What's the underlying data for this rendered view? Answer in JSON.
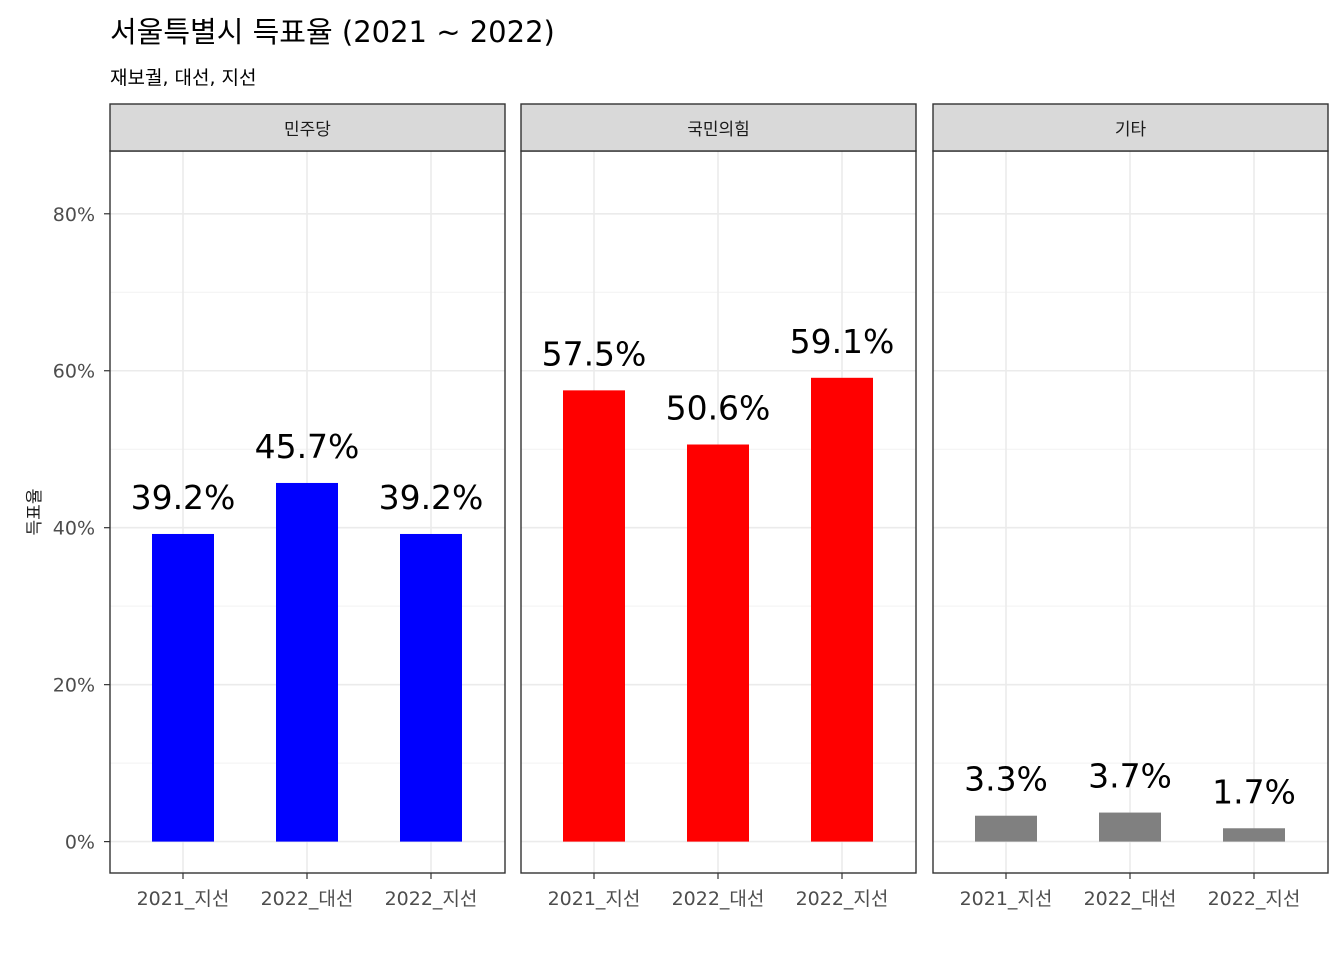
{
  "chart_data": {
    "type": "bar",
    "title": "서울특별시 득표율 (2021 ~ 2022)",
    "subtitle": "재보궐, 대선, 지선",
    "xlabel": "",
    "ylabel": "득표율",
    "ylim": [
      -4,
      88
    ],
    "y_ticks": [
      0,
      20,
      40,
      60,
      80
    ],
    "y_tick_labels": [
      "0%",
      "20%",
      "40%",
      "60%",
      "80%"
    ],
    "grid": true,
    "categories": [
      "2021_지선",
      "2022_대선",
      "2022_지선"
    ],
    "panels": [
      {
        "name": "민주당",
        "color": "#0000FF",
        "values": [
          39.2,
          45.7,
          39.2
        ],
        "labels": [
          "39.2%",
          "45.7%",
          "39.2%"
        ]
      },
      {
        "name": "국민의힘",
        "color": "#FF0000",
        "values": [
          57.5,
          50.6,
          59.1
        ],
        "labels": [
          "57.5%",
          "50.6%",
          "59.1%"
        ]
      },
      {
        "name": "기타",
        "color": "#808080",
        "values": [
          3.3,
          3.7,
          1.7
        ],
        "labels": [
          "3.3%",
          "3.7%",
          "1.7%"
        ]
      }
    ]
  }
}
